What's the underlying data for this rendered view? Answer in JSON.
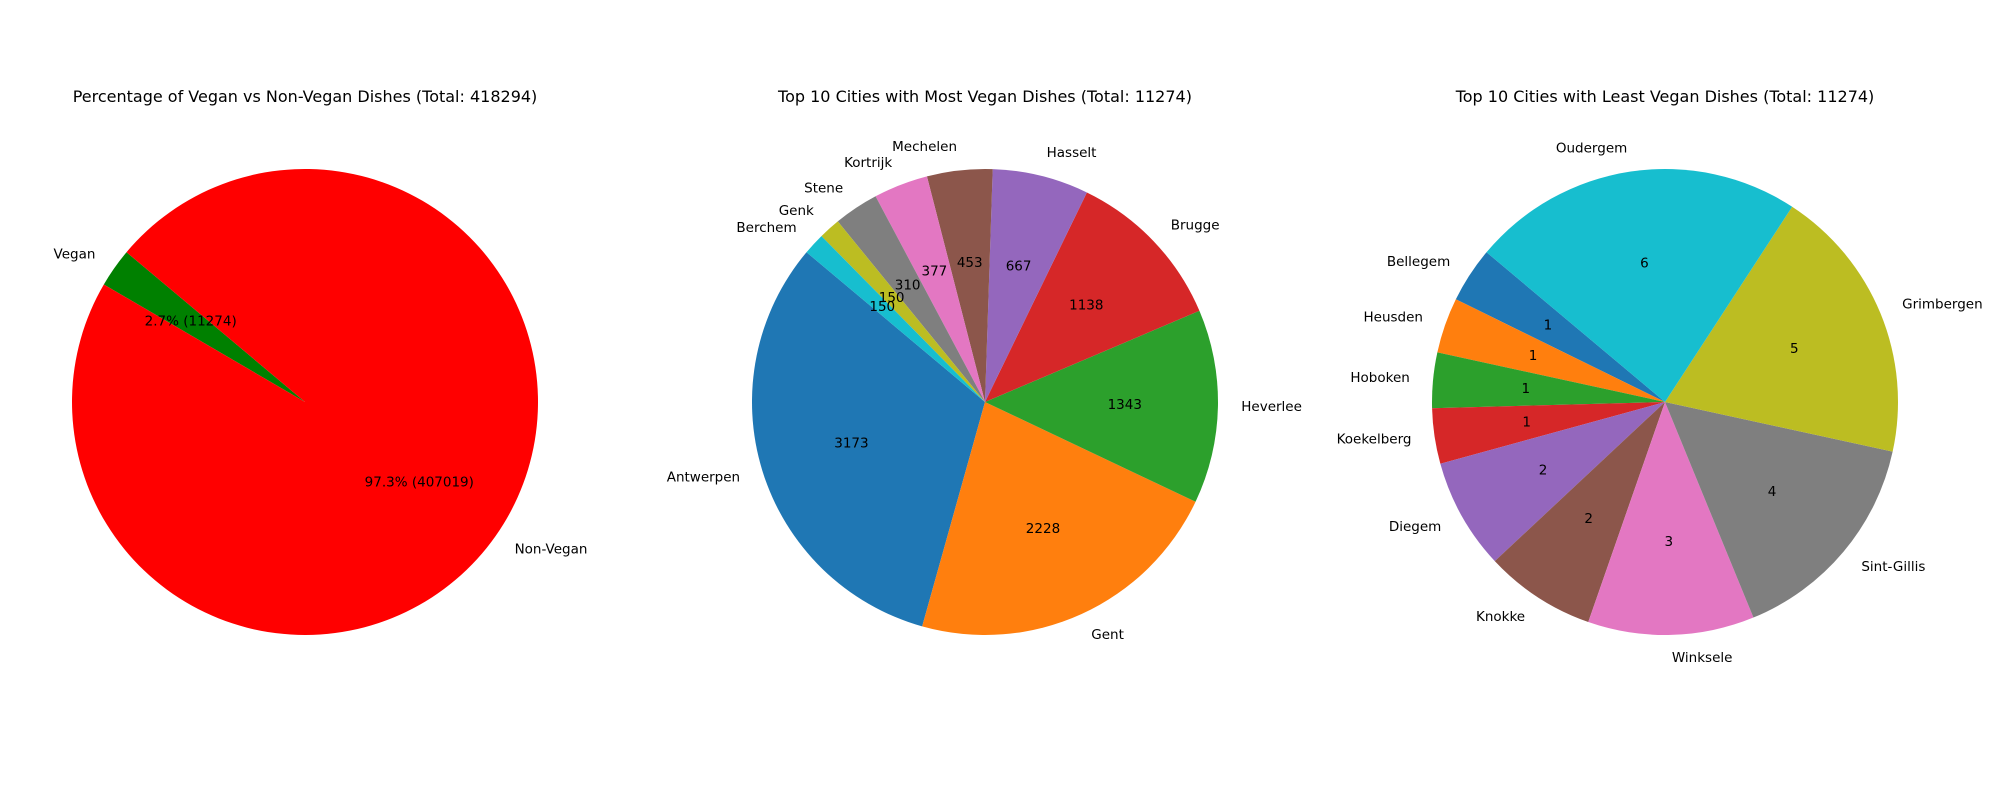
{
  "chart_data": [
    {
      "type": "pie",
      "title": "Percentage of Vegan vs Non-Vegan Dishes (Total: 418294)",
      "categories": [
        "Vegan",
        "Non-Vegan"
      ],
      "values": [
        11274,
        407019
      ],
      "percent_labels": [
        "2.7% (11274)",
        "97.3% (407019)"
      ],
      "colors": [
        "#008000",
        "#ff0000"
      ],
      "start_angle_deg": 140,
      "direction": "counterclockwise"
    },
    {
      "type": "pie",
      "title": "Top 10 Cities with Most Vegan Dishes (Total: 11274)",
      "categories": [
        "Antwerpen",
        "Gent",
        "Heverlee",
        "Brugge",
        "Hasselt",
        "Mechelen",
        "Kortrijk",
        "Stene",
        "Genk",
        "Berchem"
      ],
      "values": [
        3173,
        2228,
        1343,
        1138,
        667,
        453,
        377,
        310,
        150,
        150
      ],
      "percent_labels": [
        "3173",
        "2228",
        "1343",
        "1138",
        "667",
        "453",
        "377",
        "310",
        "150",
        "150"
      ],
      "colors": [
        "#1f77b4",
        "#ff7f0e",
        "#2ca02c",
        "#d62728",
        "#9467bd",
        "#8c564b",
        "#e377c2",
        "#7f7f7f",
        "#bcbd22",
        "#17becf"
      ],
      "start_angle_deg": 140,
      "direction": "counterclockwise"
    },
    {
      "type": "pie",
      "title": "Top 10 Cities with Least Vegan Dishes (Total: 11274)",
      "categories": [
        "Bellegem",
        "Heusden",
        "Hoboken",
        "Koekelberg",
        "Diegem",
        "Knokke",
        "Winksele",
        "Sint-Gillis",
        "Grimbergen",
        "Oudergem"
      ],
      "values": [
        1,
        1,
        1,
        1,
        2,
        2,
        3,
        4,
        5,
        6
      ],
      "percent_labels": [
        "1",
        "1",
        "1",
        "1",
        "2",
        "2",
        "3",
        "4",
        "5",
        "6"
      ],
      "colors": [
        "#1f77b4",
        "#ff7f0e",
        "#2ca02c",
        "#d62728",
        "#9467bd",
        "#8c564b",
        "#e377c2",
        "#7f7f7f",
        "#bcbd22",
        "#17becf"
      ],
      "start_angle_deg": 140,
      "direction": "counterclockwise"
    }
  ]
}
